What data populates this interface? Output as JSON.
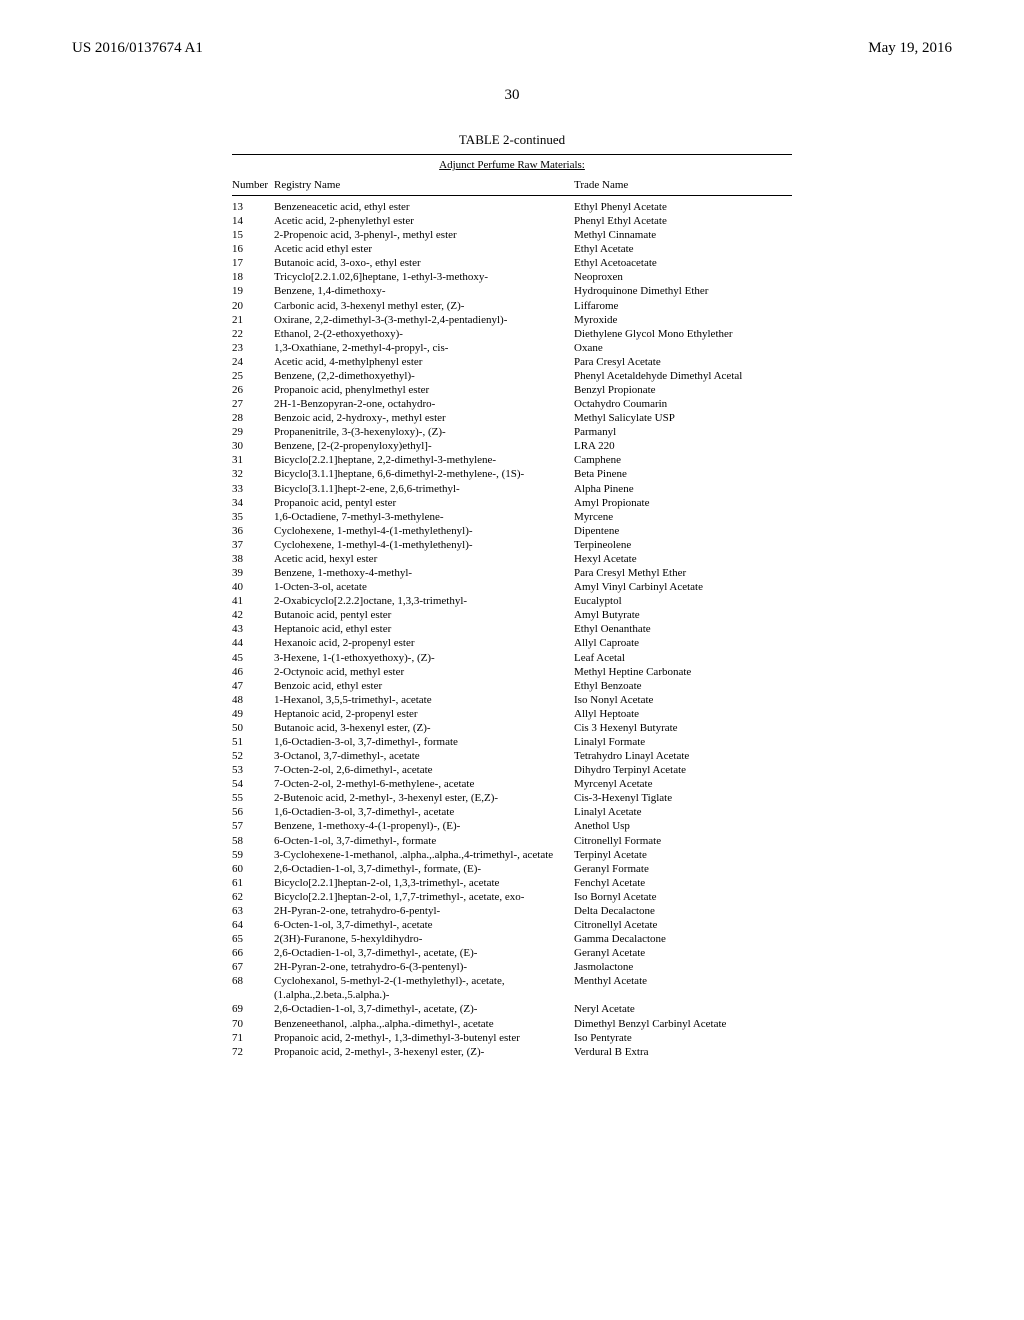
{
  "header": {
    "left": "US 2016/0137674 A1",
    "right": "May 19, 2016"
  },
  "page_number": "30",
  "table": {
    "title": "TABLE 2-continued",
    "subtitle": "Adjunct Perfume Raw Materials:",
    "columns": {
      "c1": "Number",
      "c2": "Registry Name",
      "c3": "Trade Name"
    },
    "rows": [
      {
        "n": "13",
        "r": "Benzeneacetic acid, ethyl ester",
        "t": "Ethyl Phenyl Acetate"
      },
      {
        "n": "14",
        "r": "Acetic acid, 2-phenylethyl ester",
        "t": "Phenyl Ethyl Acetate"
      },
      {
        "n": "15",
        "r": "2-Propenoic acid, 3-phenyl-, methyl ester",
        "t": "Methyl Cinnamate"
      },
      {
        "n": "16",
        "r": "Acetic acid ethyl ester",
        "t": "Ethyl Acetate"
      },
      {
        "n": "17",
        "r": "Butanoic acid, 3-oxo-, ethyl ester",
        "t": "Ethyl Acetoacetate"
      },
      {
        "n": "18",
        "r": "Tricyclo[2.2.1.02,6]heptane, 1-ethyl-3-methoxy-",
        "t": "Neoproxen"
      },
      {
        "n": "19",
        "r": "Benzene, 1,4-dimethoxy-",
        "t": "Hydroquinone Dimethyl Ether"
      },
      {
        "n": "20",
        "r": "Carbonic acid, 3-hexenyl methyl ester, (Z)-",
        "t": "Liffarome"
      },
      {
        "n": "21",
        "r": "Oxirane, 2,2-dimethyl-3-(3-methyl-2,4-pentadienyl)-",
        "t": "Myroxide"
      },
      {
        "n": "22",
        "r": "Ethanol, 2-(2-ethoxyethoxy)-",
        "t": "Diethylene Glycol Mono Ethylether"
      },
      {
        "n": "23",
        "r": "1,3-Oxathiane, 2-methyl-4-propyl-, cis-",
        "t": "Oxane"
      },
      {
        "n": "24",
        "r": "Acetic acid, 4-methylphenyl ester",
        "t": "Para Cresyl Acetate"
      },
      {
        "n": "25",
        "r": "Benzene, (2,2-dimethoxyethyl)-",
        "t": "Phenyl Acetaldehyde Dimethyl Acetal"
      },
      {
        "n": "26",
        "r": "Propanoic acid, phenylmethyl ester",
        "t": "Benzyl Propionate"
      },
      {
        "n": "27",
        "r": "2H-1-Benzopyran-2-one, octahydro-",
        "t": "Octahydro Coumarin"
      },
      {
        "n": "28",
        "r": "Benzoic acid, 2-hydroxy-, methyl ester",
        "t": "Methyl Salicylate USP"
      },
      {
        "n": "29",
        "r": "Propanenitrile, 3-(3-hexenyloxy)-, (Z)-",
        "t": "Parmanyl"
      },
      {
        "n": "30",
        "r": "Benzene, [2-(2-propenyloxy)ethyl]-",
        "t": "LRA 220"
      },
      {
        "n": "31",
        "r": "Bicyclo[2.2.1]heptane, 2,2-dimethyl-3-methylene-",
        "t": "Camphene"
      },
      {
        "n": "32",
        "r": "Bicyclo[3.1.1]heptane, 6,6-dimethyl-2-methylene-, (1S)-",
        "t": "Beta Pinene"
      },
      {
        "n": "33",
        "r": "Bicyclo[3.1.1]hept-2-ene, 2,6,6-trimethyl-",
        "t": "Alpha Pinene"
      },
      {
        "n": "34",
        "r": "Propanoic acid, pentyl ester",
        "t": "Amyl Propionate"
      },
      {
        "n": "35",
        "r": "1,6-Octadiene, 7-methyl-3-methylene-",
        "t": "Myrcene"
      },
      {
        "n": "36",
        "r": "Cyclohexene, 1-methyl-4-(1-methylethenyl)-",
        "t": "Dipentene"
      },
      {
        "n": "37",
        "r": "Cyclohexene, 1-methyl-4-(1-methylethenyl)-",
        "t": "Terpineolene"
      },
      {
        "n": "38",
        "r": "Acetic acid, hexyl ester",
        "t": "Hexyl Acetate"
      },
      {
        "n": "39",
        "r": "Benzene, 1-methoxy-4-methyl-",
        "t": "Para Cresyl Methyl Ether"
      },
      {
        "n": "40",
        "r": "1-Octen-3-ol, acetate",
        "t": "Amyl Vinyl Carbinyl Acetate"
      },
      {
        "n": "41",
        "r": "2-Oxabicyclo[2.2.2]octane, 1,3,3-trimethyl-",
        "t": "Eucalyptol"
      },
      {
        "n": "42",
        "r": "Butanoic acid, pentyl ester",
        "t": "Amyl Butyrate"
      },
      {
        "n": "43",
        "r": "Heptanoic acid, ethyl ester",
        "t": "Ethyl Oenanthate"
      },
      {
        "n": "44",
        "r": "Hexanoic acid, 2-propenyl ester",
        "t": "Allyl Caproate"
      },
      {
        "n": "45",
        "r": "3-Hexene, 1-(1-ethoxyethoxy)-, (Z)-",
        "t": "Leaf Acetal"
      },
      {
        "n": "46",
        "r": "2-Octynoic acid, methyl ester",
        "t": "Methyl Heptine Carbonate"
      },
      {
        "n": "47",
        "r": "Benzoic acid, ethyl ester",
        "t": "Ethyl Benzoate"
      },
      {
        "n": "48",
        "r": "1-Hexanol, 3,5,5-trimethyl-, acetate",
        "t": "Iso Nonyl Acetate"
      },
      {
        "n": "49",
        "r": "Heptanoic acid, 2-propenyl ester",
        "t": "Allyl Heptoate"
      },
      {
        "n": "50",
        "r": "Butanoic acid, 3-hexenyl ester, (Z)-",
        "t": "Cis 3 Hexenyl Butyrate"
      },
      {
        "n": "51",
        "r": "1,6-Octadien-3-ol, 3,7-dimethyl-, formate",
        "t": "Linalyl Formate"
      },
      {
        "n": "52",
        "r": "3-Octanol, 3,7-dimethyl-, acetate",
        "t": "Tetrahydro Linayl Acetate"
      },
      {
        "n": "53",
        "r": "7-Octen-2-ol, 2,6-dimethyl-, acetate",
        "t": "Dihydro Terpinyl Acetate"
      },
      {
        "n": "54",
        "r": "7-Octen-2-ol, 2-methyl-6-methylene-, acetate",
        "t": "Myrcenyl Acetate"
      },
      {
        "n": "55",
        "r": "2-Butenoic acid, 2-methyl-, 3-hexenyl ester, (E,Z)-",
        "t": "Cis-3-Hexenyl Tiglate"
      },
      {
        "n": "56",
        "r": "1,6-Octadien-3-ol, 3,7-dimethyl-, acetate",
        "t": "Linalyl Acetate"
      },
      {
        "n": "57",
        "r": "Benzene, 1-methoxy-4-(1-propenyl)-, (E)-",
        "t": "Anethol Usp"
      },
      {
        "n": "58",
        "r": "6-Octen-1-ol, 3,7-dimethyl-, formate",
        "t": "Citronellyl Formate"
      },
      {
        "n": "59",
        "r": "3-Cyclohexene-1-methanol, .alpha.,.alpha.,4-trimethyl-, acetate",
        "t": "Terpinyl Acetate"
      },
      {
        "n": "60",
        "r": "2,6-Octadien-1-ol, 3,7-dimethyl-, formate, (E)-",
        "t": "Geranyl Formate"
      },
      {
        "n": "61",
        "r": "Bicyclo[2.2.1]heptan-2-ol, 1,3,3-trimethyl-, acetate",
        "t": "Fenchyl Acetate"
      },
      {
        "n": "62",
        "r": "Bicyclo[2.2.1]heptan-2-ol, 1,7,7-trimethyl-, acetate, exo-",
        "t": "Iso Bornyl Acetate"
      },
      {
        "n": "63",
        "r": "2H-Pyran-2-one, tetrahydro-6-pentyl-",
        "t": "Delta Decalactone"
      },
      {
        "n": "64",
        "r": "6-Octen-1-ol, 3,7-dimethyl-, acetate",
        "t": "Citronellyl Acetate"
      },
      {
        "n": "65",
        "r": "2(3H)-Furanone, 5-hexyldihydro-",
        "t": "Gamma Decalactone"
      },
      {
        "n": "66",
        "r": "2,6-Octadien-1-ol, 3,7-dimethyl-, acetate, (E)-",
        "t": "Geranyl Acetate"
      },
      {
        "n": "67",
        "r": "2H-Pyran-2-one, tetrahydro-6-(3-pentenyl)-",
        "t": "Jasmolactone"
      },
      {
        "n": "68",
        "r": "Cyclohexanol, 5-methyl-2-(1-methylethyl)-, acetate,(1.alpha.,2.beta.,5.alpha.)-",
        "t": "Menthyl Acetate"
      },
      {
        "n": "69",
        "r": "2,6-Octadien-1-ol, 3,7-dimethyl-, acetate, (Z)-",
        "t": "Neryl Acetate"
      },
      {
        "n": "70",
        "r": "Benzeneethanol, .alpha.,.alpha.-dimethyl-, acetate",
        "t": "Dimethyl Benzyl Carbinyl Acetate"
      },
      {
        "n": "71",
        "r": "Propanoic acid, 2-methyl-, 1,3-dimethyl-3-butenyl ester",
        "t": "Iso Pentyrate"
      },
      {
        "n": "72",
        "r": "Propanoic acid, 2-methyl-, 3-hexenyl ester, (Z)-",
        "t": "Verdural B Extra"
      }
    ]
  }
}
